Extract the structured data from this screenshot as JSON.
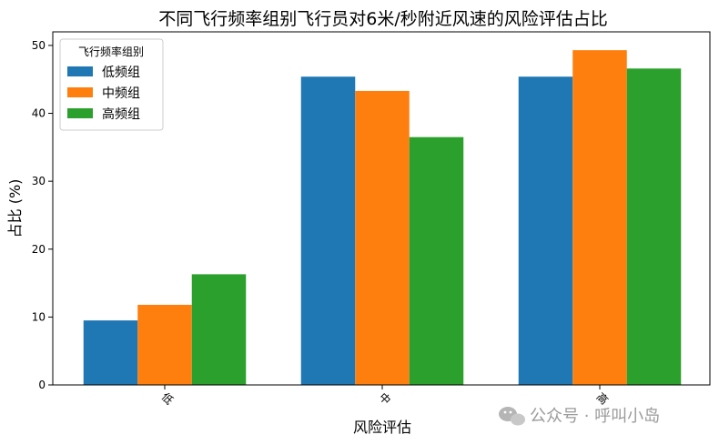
{
  "chart_data": {
    "type": "bar",
    "title": "不同飞行频率组别飞行员对6米/秒附近风速的风险评估占比",
    "xlabel": "风险评估",
    "ylabel": "占比 (%)",
    "categories": [
      "低",
      "中",
      "高"
    ],
    "series": [
      {
        "name": "低频组",
        "color": "#1f77b4",
        "values": [
          9.5,
          45.4,
          45.4
        ]
      },
      {
        "name": "中频组",
        "color": "#ff7f0e",
        "values": [
          11.8,
          43.3,
          49.3
        ]
      },
      {
        "name": "高频组",
        "color": "#2ca02c",
        "values": [
          16.3,
          36.5,
          46.6
        ]
      }
    ],
    "ylim": [
      0,
      52
    ],
    "yticks": [
      0,
      10,
      20,
      30,
      40,
      50
    ],
    "legend": {
      "title": "飞行频率组别",
      "position": "top-left"
    },
    "grid": false
  },
  "watermark": {
    "text": "公众号 · 呼叫小岛",
    "icon": "wechat-icon"
  }
}
